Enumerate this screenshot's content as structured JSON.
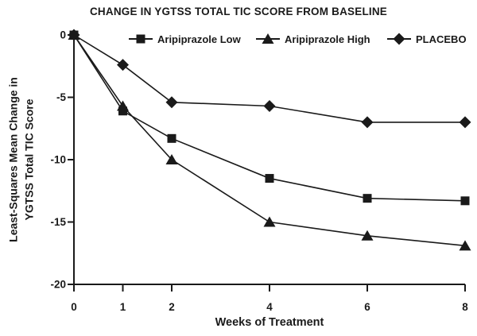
{
  "chart_data": {
    "type": "line",
    "title": "CHANGE IN YGTSS TOTAL TIC SCORE FROM BASELINE",
    "xlabel": "Weeks of Treatment",
    "ylabel": "Least-Squares Mean Change in YGTSS Total TIC Score",
    "ylabel_lines": [
      "Least-Squares Mean Change in",
      "YGTSS Total TIC Score"
    ],
    "x": [
      0,
      1,
      2,
      4,
      6,
      8
    ],
    "x_tick_labels": [
      "0",
      "1",
      "2",
      "4",
      "6",
      "8"
    ],
    "y_ticks": [
      0,
      -5,
      -10,
      -15,
      -20
    ],
    "y_tick_labels": [
      "0",
      "-5",
      "-10",
      "-15",
      "-20"
    ],
    "xlim": [
      0,
      8
    ],
    "ylim": [
      -20,
      0
    ],
    "grid": false,
    "legend_position": "top-inside-horizontal",
    "series": [
      {
        "name": "Aripiprazole Low",
        "marker": "square",
        "values": [
          0,
          -6.1,
          -8.3,
          -11.5,
          -13.1,
          -13.3
        ]
      },
      {
        "name": "Aripiprazole High",
        "marker": "triangle",
        "values": [
          0,
          -5.7,
          -10.0,
          -15.0,
          -16.1,
          -16.9
        ]
      },
      {
        "name": "PLACEBO",
        "marker": "diamond",
        "values": [
          0,
          -2.4,
          -5.4,
          -5.7,
          -7.0,
          -7.0
        ]
      }
    ],
    "color": "#1a1a1a",
    "background": "#ffffff"
  }
}
